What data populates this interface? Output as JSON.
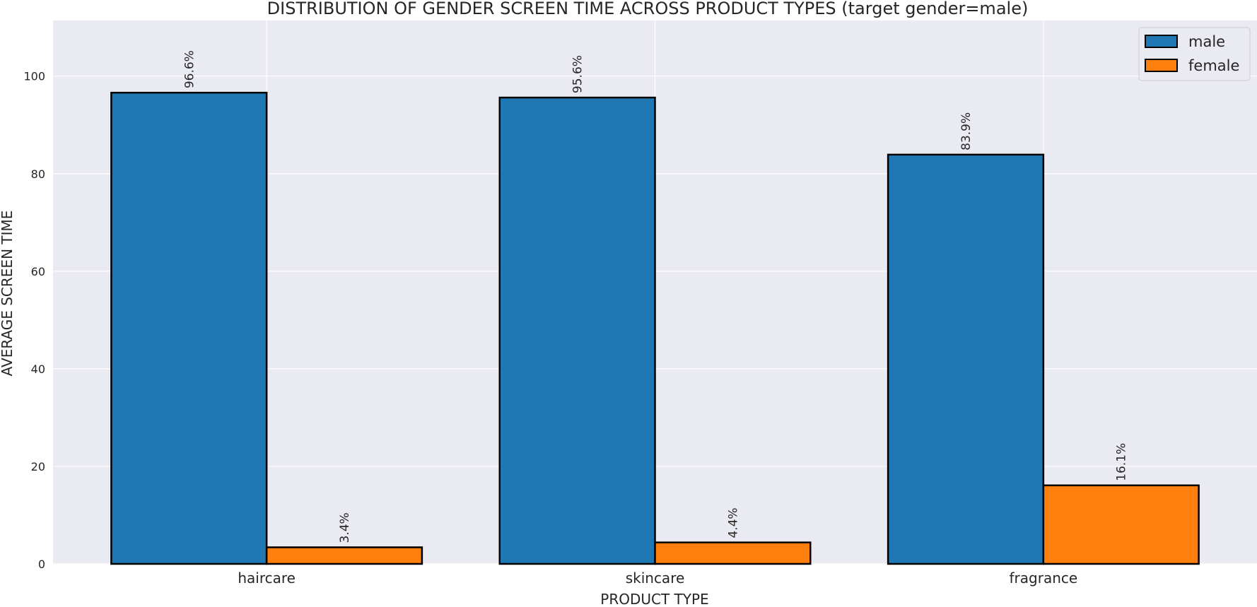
{
  "chart_data": {
    "type": "bar",
    "title": "DISTRIBUTION OF GENDER SCREEN TIME ACROSS PRODUCT TYPES (target gender=male)",
    "xlabel": "PRODUCT TYPE",
    "ylabel": "AVERAGE SCREEN TIME",
    "categories": [
      "haircare",
      "skincare",
      "fragrance"
    ],
    "series": [
      {
        "name": "male",
        "values": [
          96.6,
          95.6,
          83.9
        ],
        "labels": [
          "96.6%",
          "95.6%",
          "83.9%"
        ],
        "color": "#1f77b4"
      },
      {
        "name": "female",
        "values": [
          3.4,
          4.4,
          16.1
        ],
        "labels": [
          "3.4%",
          "4.4%",
          "16.1%"
        ],
        "color": "#ff7f0e"
      }
    ],
    "ylim": [
      0,
      111.4
    ],
    "yticks": [
      0,
      20,
      40,
      60,
      80,
      100
    ],
    "grid": true,
    "legend_position": "top-right",
    "background": "#eaeaf2",
    "grid_color": "#ffffff",
    "bar_edge_color": "#000000"
  }
}
